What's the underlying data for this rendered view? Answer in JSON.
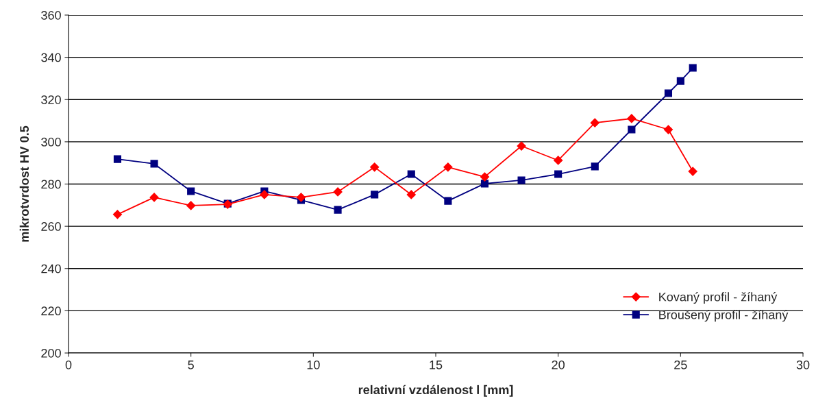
{
  "chart_data": {
    "type": "line",
    "xlabel": "relativní vzdálenost l [mm]",
    "ylabel": "mikrotvrdost HV 0.5",
    "xlim": [
      0,
      30
    ],
    "xticks": [
      0,
      5,
      10,
      15,
      20,
      25,
      30
    ],
    "ylim": [
      200,
      360
    ],
    "yticks": [
      200,
      220,
      240,
      260,
      280,
      300,
      320,
      340,
      360
    ],
    "grid": "y",
    "legend": "bottom right",
    "series": [
      {
        "name": "Kovaný profil - žíhaný",
        "color": "#ff0000",
        "marker": "diamond",
        "x": [
          2,
          3.5,
          5,
          6.5,
          8,
          9.5,
          11,
          12.5,
          14,
          15.5,
          17,
          18.5,
          20,
          21.5,
          23,
          24.5,
          25.5
        ],
        "values": [
          265.6,
          273.7,
          269.8,
          270.4,
          275,
          273.7,
          276.3,
          288,
          275,
          288,
          283.4,
          298,
          291.2,
          309,
          311,
          305.8,
          286
        ]
      },
      {
        "name": "Broušený profil - žíhaný",
        "color": "#000080",
        "marker": "square",
        "x": [
          2,
          3.5,
          5,
          6.5,
          8,
          9.5,
          11,
          12.5,
          14,
          15.5,
          17,
          18.5,
          20,
          21.5,
          23,
          24.5,
          25,
          25.5
        ],
        "values": [
          291.8,
          289.6,
          276.6,
          270.7,
          276.6,
          272.4,
          267.8,
          275,
          284.7,
          272,
          280.2,
          281.8,
          284.7,
          288.3,
          305.8,
          323,
          328.8,
          335
        ]
      }
    ]
  }
}
